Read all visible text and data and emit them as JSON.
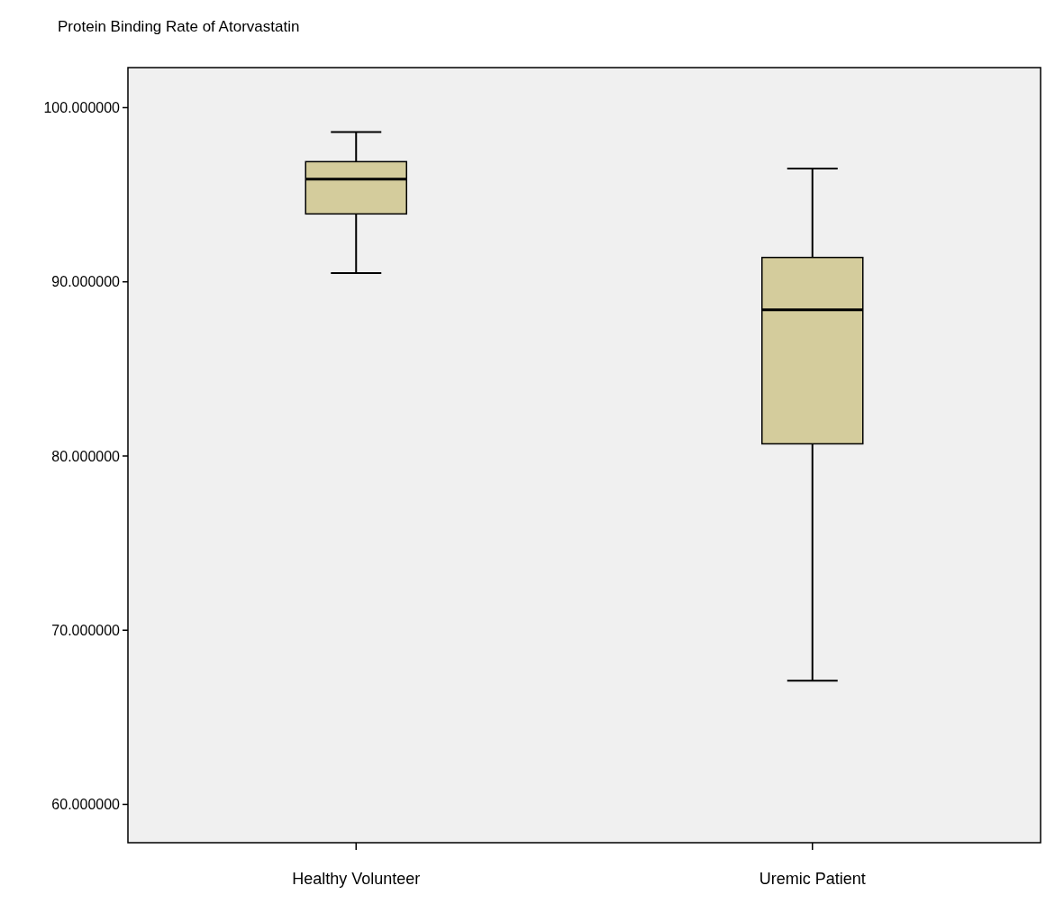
{
  "chart_data": {
    "type": "box",
    "title": "Protein Binding Rate of  Atorvastatin",
    "categories": [
      "Healthy Volunteer",
      "Uremic Patient"
    ],
    "boxes": [
      {
        "low": 90.5,
        "q1": 93.9,
        "median": 95.9,
        "q3": 96.9,
        "high": 98.6
      },
      {
        "low": 67.1,
        "q1": 80.7,
        "median": 88.4,
        "q3": 91.4,
        "high": 96.5
      }
    ],
    "color": "#d4cc9c",
    "ylim": [
      57.8,
      102.3
    ],
    "yticks": [
      {
        "value": 60,
        "label": "60.000000"
      },
      {
        "value": 70,
        "label": "70.000000"
      },
      {
        "value": 80,
        "label": "80.000000"
      },
      {
        "value": 90,
        "label": "90.000000"
      },
      {
        "value": 100,
        "label": "100.000000"
      }
    ],
    "grid": false
  }
}
